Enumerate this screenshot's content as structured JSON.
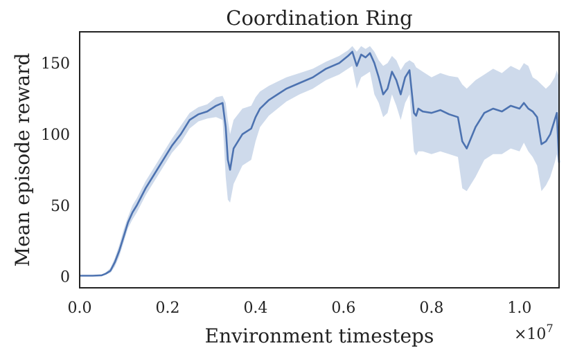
{
  "chart_data": {
    "type": "line",
    "title": "Coordination Ring",
    "xlabel": "Environment timesteps",
    "ylabel": "Mean episode reward",
    "x_offset_label": "×10",
    "x_offset_exponent": "7",
    "xlim": [
      0.0,
      1.09
    ],
    "ylim": [
      -8,
      172
    ],
    "x_ticks": [
      0.0,
      0.2,
      0.4,
      0.6,
      0.8,
      1.0
    ],
    "x_tick_labels": [
      "0.0",
      "0.2",
      "0.4",
      "0.6",
      "0.8",
      "1.0"
    ],
    "y_ticks": [
      0,
      50,
      100,
      150
    ],
    "y_tick_labels": [
      "0",
      "50",
      "100",
      "150"
    ],
    "grid": false,
    "legend": "none",
    "colors": {
      "line": "#4c72b0",
      "band": "#c6d3e8",
      "axes": "#222222"
    },
    "series": [
      {
        "x": [
          0.0,
          0.03,
          0.05,
          0.06,
          0.07,
          0.08,
          0.09,
          0.1,
          0.11,
          0.12,
          0.13,
          0.15,
          0.17,
          0.19,
          0.21,
          0.23,
          0.25,
          0.27,
          0.29,
          0.31,
          0.325,
          0.332,
          0.337,
          0.342,
          0.35,
          0.37,
          0.39,
          0.4,
          0.41,
          0.43,
          0.45,
          0.47,
          0.5,
          0.53,
          0.56,
          0.59,
          0.61,
          0.62,
          0.63,
          0.64,
          0.65,
          0.66,
          0.67,
          0.68,
          0.69,
          0.7,
          0.71,
          0.72,
          0.73,
          0.74,
          0.75,
          0.76,
          0.765,
          0.77,
          0.78,
          0.8,
          0.82,
          0.84,
          0.86,
          0.87,
          0.88,
          0.9,
          0.92,
          0.94,
          0.96,
          0.98,
          1.0,
          1.01,
          1.02,
          1.03,
          1.04,
          1.05,
          1.06,
          1.07,
          1.08,
          1.085,
          1.09
        ],
        "values": [
          0.5,
          0.5,
          0.8,
          2,
          4,
          10,
          18,
          28,
          38,
          45,
          50,
          62,
          72,
          82,
          92,
          100,
          110,
          114,
          116,
          120,
          122,
          105,
          82,
          75,
          90,
          100,
          104,
          112,
          118,
          124,
          128,
          132,
          136,
          140,
          146,
          150,
          155,
          158,
          148,
          156,
          154,
          157,
          150,
          140,
          128,
          132,
          144,
          138,
          128,
          140,
          145,
          115,
          113,
          118,
          116,
          115,
          117,
          114,
          112,
          95,
          90,
          105,
          115,
          118,
          116,
          120,
          118,
          122,
          118,
          116,
          112,
          93,
          95,
          100,
          110,
          115,
          80
        ],
        "upper": [
          0.5,
          0.5,
          1,
          3,
          6,
          13,
          22,
          33,
          42,
          50,
          55,
          67,
          77,
          87,
          97,
          106,
          115,
          119,
          121,
          126,
          127,
          122,
          110,
          100,
          110,
          118,
          120,
          126,
          130,
          134,
          137,
          140,
          143,
          146,
          151,
          155,
          159,
          162,
          158,
          162,
          160,
          162,
          158,
          152,
          148,
          150,
          155,
          152,
          145,
          150,
          152,
          150,
          147,
          146,
          144,
          140,
          143,
          141,
          140,
          135,
          132,
          138,
          142,
          146,
          143,
          148,
          145,
          150,
          148,
          140,
          138,
          135,
          132,
          135,
          140,
          145,
          140
        ],
        "lower": [
          0.5,
          0.5,
          0.6,
          1.5,
          2.5,
          7,
          14,
          24,
          34,
          40,
          45,
          57,
          67,
          77,
          87,
          94,
          104,
          109,
          111,
          112,
          110,
          70,
          54,
          52,
          65,
          78,
          82,
          95,
          105,
          113,
          118,
          123,
          128,
          132,
          138,
          142,
          146,
          148,
          132,
          140,
          142,
          144,
          128,
          122,
          112,
          115,
          128,
          120,
          110,
          122,
          128,
          88,
          85,
          88,
          88,
          86,
          88,
          86,
          84,
          62,
          60,
          70,
          82,
          86,
          86,
          90,
          88,
          94,
          88,
          84,
          78,
          60,
          64,
          70,
          80,
          86,
          76
        ]
      }
    ]
  }
}
